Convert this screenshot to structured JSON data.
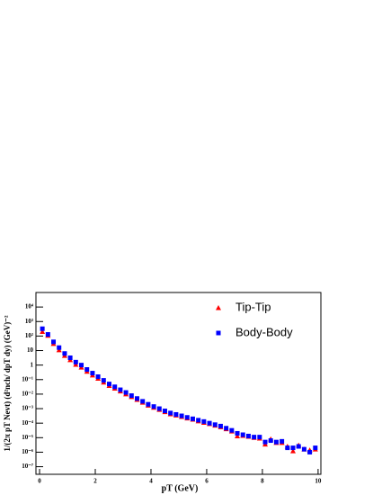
{
  "chart_data": {
    "type": "scatter",
    "xlabel": "pT (GeV)",
    "ylabel": "1/(2π pT Nevt) (d²nch/ dpT dy) (GeV)⁻²",
    "log_y": true,
    "legend": "upper right",
    "xlim": [
      -0.13,
      10.1
    ],
    "ylim": [
      3e-08,
      100000
    ],
    "xticks": [
      0,
      2,
      4,
      6,
      8,
      10
    ],
    "yticks": [
      {
        "value": 1e-07,
        "label": "10⁻⁷"
      },
      {
        "value": 1e-06,
        "label": "10⁻⁶"
      },
      {
        "value": 1e-05,
        "label": "10⁻⁵"
      },
      {
        "value": 0.0001,
        "label": "10⁻⁴"
      },
      {
        "value": 0.001,
        "label": "10⁻³"
      },
      {
        "value": 0.01,
        "label": "10⁻²"
      },
      {
        "value": 0.1,
        "label": "10⁻¹"
      },
      1,
      10,
      {
        "value": 100,
        "label": "10²"
      },
      {
        "value": 1000,
        "label": "10³"
      },
      {
        "value": 10000,
        "label": "10⁴"
      }
    ],
    "x": [
      0.1,
      0.3,
      0.5,
      0.7,
      0.9,
      1.1,
      1.3,
      1.5,
      1.7,
      1.9,
      2.1,
      2.3,
      2.5,
      2.7,
      2.9,
      3.1,
      3.3,
      3.5,
      3.7,
      3.9,
      4.1,
      4.3,
      4.5,
      4.7,
      4.9,
      5.1,
      5.3,
      5.5,
      5.7,
      5.9,
      6.1,
      6.3,
      6.5,
      6.7,
      6.9,
      7.1,
      7.3,
      7.5,
      7.7,
      7.9,
      8.1,
      8.3,
      8.5,
      8.7,
      8.9,
      9.1,
      9.3,
      9.5,
      9.7,
      9.9
    ],
    "series": [
      {
        "name": "Tip-Tip",
        "color": "#ff0000",
        "marker": "triangle",
        "values": [
          200,
          110,
          30,
          11,
          4.5,
          2.3,
          1.1,
          0.7,
          0.36,
          0.2,
          0.12,
          0.065,
          0.038,
          0.025,
          0.016,
          0.01,
          0.0065,
          0.0042,
          0.0027,
          0.0017,
          0.0012,
          0.00085,
          0.0006,
          0.00043,
          0.00035,
          0.00028,
          0.00022,
          0.00018,
          0.00014,
          0.00011,
          9e-05,
          7e-05,
          5.5e-05,
          4e-05,
          2.8e-05,
          1.3e-05,
          1.4e-05,
          1.2e-05,
          1e-05,
          9e-06,
          3.5e-06,
          8e-06,
          4.5e-06,
          4.5e-06,
          2.5e-06,
          1.2e-06,
          3e-06,
          1.6e-06,
          1.4e-06,
          1.6e-06
        ]
      },
      {
        "name": "Body-Body",
        "color": "#0000ff",
        "marker": "square",
        "values": [
          320,
          130,
          40,
          16,
          6.3,
          3.2,
          1.6,
          1.0,
          0.5,
          0.28,
          0.16,
          0.089,
          0.05,
          0.032,
          0.02,
          0.013,
          0.0079,
          0.005,
          0.0032,
          0.002,
          0.0014,
          0.001,
          0.0007,
          0.0005,
          0.0004,
          0.00032,
          0.00025,
          0.0002,
          0.00016,
          0.00013,
          0.0001,
          7.9e-05,
          6.3e-05,
          4.5e-05,
          3.2e-05,
          2e-05,
          1.6e-05,
          1.3e-05,
          1.1e-05,
          1.1e-05,
          5e-06,
          6.3e-06,
          5e-06,
          5.6e-06,
          2e-06,
          2e-06,
          2.5e-06,
          1.6e-06,
          1e-06,
          2e-06
        ]
      }
    ]
  }
}
